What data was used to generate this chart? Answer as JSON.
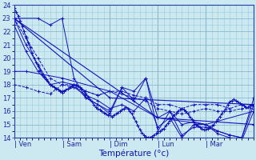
{
  "title": "Température (°c)",
  "bg_color": "#cce8f0",
  "plot_bg_color": "#cce8f0",
  "line_color": "#1111bb",
  "grid_minor_color": "#99ccdd",
  "grid_major_color": "#88bbcc",
  "ylim": [
    14,
    24
  ],
  "yticks": [
    14,
    15,
    16,
    17,
    18,
    19,
    20,
    21,
    22,
    23,
    24
  ],
  "day_labels": [
    "Ven",
    "Sam",
    "Dim",
    "Lun",
    "Mar"
  ],
  "day_positions": [
    0,
    24,
    48,
    72,
    96
  ],
  "xlim": [
    0,
    120
  ],
  "figsize": [
    3.2,
    2.0
  ],
  "dpi": 100,
  "series": [
    {
      "x": [
        0,
        1,
        2,
        3,
        4,
        5,
        6,
        7,
        8,
        9,
        10,
        11,
        12,
        13,
        14,
        15,
        16,
        17,
        18,
        19,
        20,
        21,
        22,
        23,
        24,
        25,
        26,
        27,
        28,
        29,
        30,
        31,
        32,
        33,
        34,
        35,
        36,
        37,
        38,
        39,
        40,
        41,
        42,
        43,
        44,
        45,
        46,
        47,
        48,
        49,
        50,
        51,
        52,
        53,
        54,
        55,
        56,
        57,
        58,
        59,
        60,
        61,
        62,
        63,
        64,
        65,
        66,
        67,
        68,
        69,
        70,
        71,
        72,
        73,
        74,
        75,
        76,
        77,
        78,
        79,
        80,
        81,
        82,
        83,
        84,
        85,
        86,
        87,
        88,
        89,
        90,
        91,
        92,
        93,
        94,
        95,
        96,
        97,
        98,
        99,
        100,
        101,
        102,
        103,
        104,
        105,
        106,
        107,
        108,
        109,
        110,
        111,
        112,
        113,
        114,
        115,
        116,
        117,
        118,
        119,
        120
      ],
      "y": [
        23.8,
        23.5,
        23.2,
        22.8,
        22.4,
        22.0,
        21.6,
        21.2,
        20.8,
        20.4,
        20.0,
        19.7,
        19.4,
        19.1,
        18.8,
        18.6,
        18.4,
        18.2,
        18.0,
        17.9,
        17.8,
        17.7,
        17.6,
        17.5,
        17.4,
        17.5,
        17.6,
        17.7,
        17.8,
        17.9,
        18.0,
        18.0,
        17.9,
        17.8,
        17.7,
        17.5,
        17.3,
        17.1,
        16.9,
        16.7,
        16.5,
        16.3,
        16.2,
        16.1,
        16.0,
        15.9,
        15.8,
        15.7,
        15.7,
        15.6,
        15.7,
        15.8,
        15.9,
        16.0,
        16.1,
        16.2,
        16.3,
        16.2,
        16.0,
        15.8,
        15.5,
        15.2,
        14.9,
        14.6,
        14.4,
        14.2,
        14.1,
        14.0,
        14.0,
        14.1,
        14.2,
        14.3,
        14.4,
        14.5,
        14.6,
        14.7,
        14.9,
        15.1,
        15.3,
        15.5,
        15.7,
        15.8,
        16.0,
        16.1,
        16.2,
        16.1,
        16.0,
        15.8,
        15.6,
        15.4,
        15.2,
        15.0,
        14.9,
        14.8,
        14.7,
        14.6,
        14.6,
        14.7,
        14.8,
        14.9,
        15.0,
        15.2,
        15.4,
        15.6,
        15.8,
        16.0,
        16.2,
        16.5,
        16.7,
        16.8,
        16.9,
        16.8,
        16.7,
        16.6,
        16.5,
        16.4,
        16.3,
        16.3,
        16.4,
        16.5,
        16.5
      ],
      "style": "-",
      "lw": 0.7
    },
    {
      "x": [
        0,
        48,
        120
      ],
      "y": [
        23.0,
        17.0,
        16.5
      ],
      "style": "-",
      "lw": 0.8
    },
    {
      "x": [
        0,
        72,
        120
      ],
      "y": [
        23.0,
        15.5,
        15.0
      ],
      "style": "-",
      "lw": 0.8
    },
    {
      "x": [
        0,
        6,
        24,
        48,
        72,
        96,
        120
      ],
      "y": [
        19.0,
        19.0,
        18.5,
        17.5,
        15.5,
        15.0,
        16.0
      ],
      "style": "-",
      "lw": 0.7
    },
    {
      "x": [
        0,
        12,
        18,
        24,
        30,
        36,
        42,
        48,
        54,
        60,
        66,
        72,
        78,
        84,
        90,
        96,
        102,
        108,
        114,
        120
      ],
      "y": [
        23.0,
        23.0,
        22.5,
        23.0,
        18.5,
        17.0,
        16.5,
        16.0,
        17.8,
        16.8,
        18.5,
        15.5,
        16.0,
        15.0,
        15.2,
        15.0,
        14.5,
        14.2,
        14.0,
        17.0
      ],
      "style": "-",
      "lw": 0.7
    },
    {
      "x": [
        0,
        6,
        12,
        18,
        24,
        30,
        36,
        42,
        48,
        54,
        60,
        66,
        72,
        78,
        84,
        90,
        96,
        102,
        108,
        114,
        120
      ],
      "y": [
        23.0,
        21.5,
        20.0,
        18.5,
        18.0,
        18.0,
        17.5,
        17.2,
        17.5,
        17.5,
        17.2,
        17.0,
        16.5,
        16.5,
        16.2,
        16.5,
        16.5,
        16.5,
        16.2,
        16.5,
        16.5
      ],
      "style": "--",
      "lw": 0.7
    },
    {
      "x": [
        0,
        6,
        12,
        18,
        24,
        30,
        36,
        42,
        48,
        54,
        60,
        66,
        72,
        78,
        84,
        90,
        96,
        102,
        108,
        114,
        120
      ],
      "y": [
        18.0,
        17.8,
        17.5,
        17.3,
        18.0,
        17.8,
        17.5,
        17.2,
        17.5,
        17.3,
        17.0,
        16.8,
        16.2,
        16.0,
        15.8,
        16.0,
        16.2,
        16.0,
        16.0,
        16.2,
        16.2
      ],
      "style": "--",
      "lw": 0.7
    },
    {
      "x": [
        0,
        6,
        12,
        18,
        24,
        30,
        36,
        42,
        48,
        54,
        60,
        66,
        72,
        78,
        84,
        90,
        96,
        102,
        108,
        114,
        120
      ],
      "y": [
        23.0,
        21.0,
        19.5,
        18.0,
        18.2,
        18.0,
        17.0,
        16.5,
        15.8,
        17.8,
        17.5,
        18.5,
        14.5,
        16.0,
        14.2,
        14.8,
        14.8,
        14.5,
        14.2,
        14.0,
        16.5
      ],
      "style": "-",
      "lw": 0.7
    },
    {
      "x": [
        0,
        6,
        12,
        18,
        24,
        30,
        36,
        42,
        48,
        54,
        60,
        66,
        72,
        78,
        84,
        90,
        96,
        102,
        108,
        114,
        120
      ],
      "y": [
        22.5,
        20.5,
        19.0,
        18.0,
        17.5,
        17.8,
        17.2,
        16.8,
        16.2,
        16.5,
        16.0,
        17.0,
        14.8,
        15.5,
        14.0,
        15.0,
        15.0,
        14.3,
        14.0,
        13.8,
        16.0
      ],
      "style": "-",
      "lw": 0.7
    }
  ]
}
